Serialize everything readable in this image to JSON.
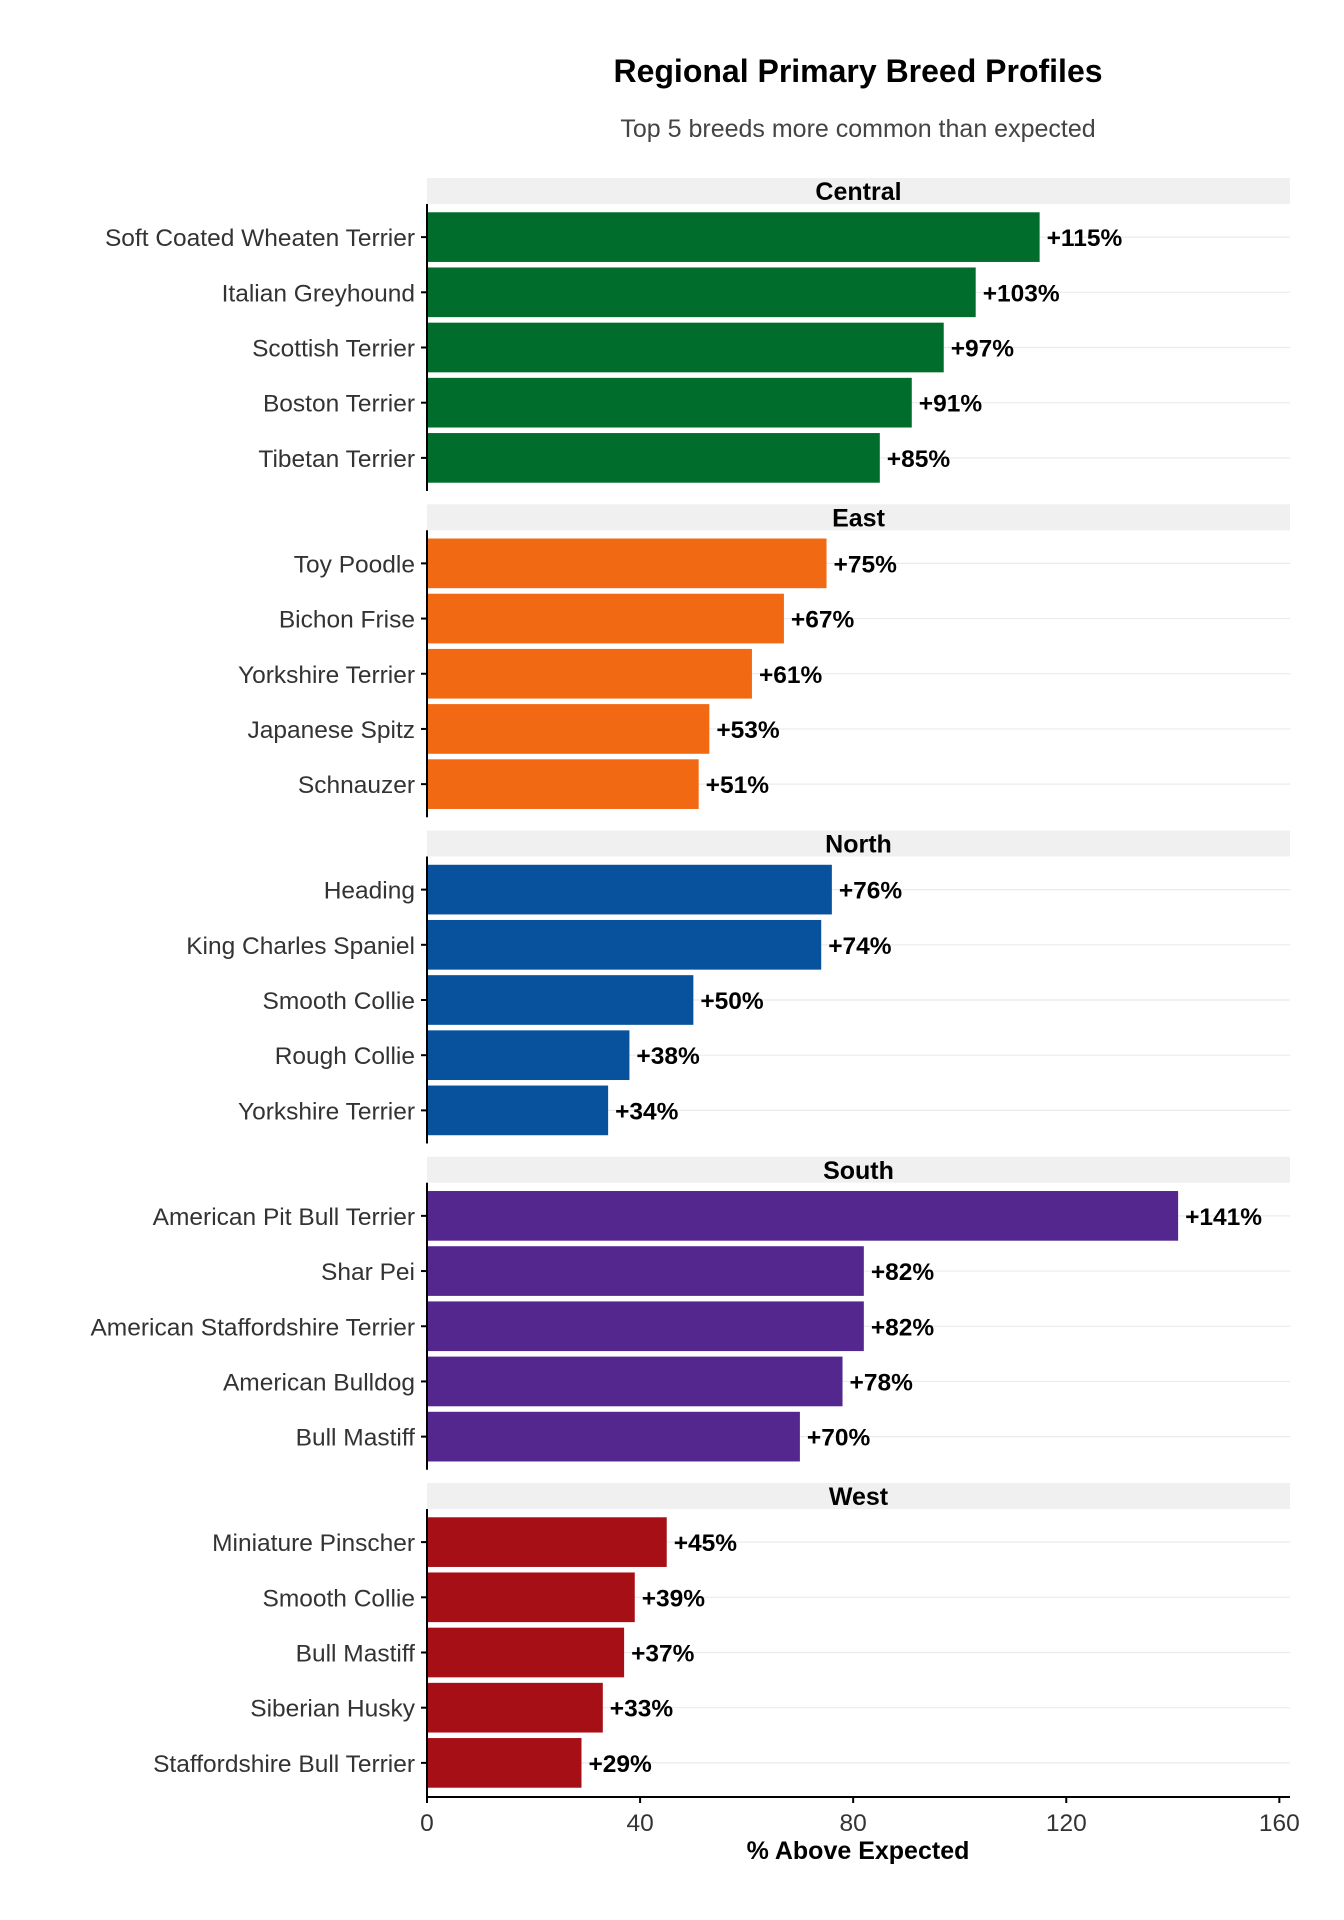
{
  "chart_data": {
    "type": "bar",
    "orientation": "horizontal",
    "title": "Regional Primary Breed Profiles",
    "subtitle": "Top 5 breeds more common than expected",
    "xlabel": "% Above Expected",
    "ylabel": "",
    "xlim": [
      0,
      162
    ],
    "xticks": [
      0,
      40,
      80,
      120,
      160
    ],
    "xtick_labels": [
      "0",
      "40",
      "80",
      "120",
      "160"
    ],
    "grid": "horizontal-major",
    "legend": "none",
    "facets": [
      {
        "name": "Central",
        "color": "#006D2C",
        "categories": [
          "Soft Coated Wheaten Terrier",
          "Italian Greyhound",
          "Scottish Terrier",
          "Boston Terrier",
          "Tibetan Terrier"
        ],
        "values": [
          115,
          103,
          97,
          91,
          85
        ],
        "labels": [
          "+115%",
          "+103%",
          "+97%",
          "+91%",
          "+85%"
        ]
      },
      {
        "name": "East",
        "color": "#F16913",
        "categories": [
          "Toy Poodle",
          "Bichon Frise",
          "Yorkshire Terrier",
          "Japanese Spitz",
          "Schnauzer"
        ],
        "values": [
          75,
          67,
          61,
          53,
          51
        ],
        "labels": [
          "+75%",
          "+67%",
          "+61%",
          "+53%",
          "+51%"
        ]
      },
      {
        "name": "North",
        "color": "#08519C",
        "categories": [
          "Heading",
          "King Charles Spaniel",
          "Smooth Collie",
          "Rough Collie",
          "Yorkshire Terrier"
        ],
        "values": [
          76,
          74,
          50,
          38,
          34
        ],
        "labels": [
          "+76%",
          "+74%",
          "+50%",
          "+38%",
          "+34%"
        ]
      },
      {
        "name": "South",
        "color": "#54278F",
        "categories": [
          "American Pit Bull Terrier",
          "Shar Pei",
          "American Staffordshire Terrier",
          "American Bulldog",
          "Bull Mastiff"
        ],
        "values": [
          141,
          82,
          82,
          78,
          70
        ],
        "labels": [
          "+141%",
          "+82%",
          "+82%",
          "+78%",
          "+70%"
        ]
      },
      {
        "name": "West",
        "color": "#A50F15",
        "categories": [
          "Miniature Pinscher",
          "Smooth Collie",
          "Bull Mastiff",
          "Siberian Husky",
          "Staffordshire Bull Terrier"
        ],
        "values": [
          45,
          39,
          37,
          33,
          29
        ],
        "labels": [
          "+45%",
          "+39%",
          "+37%",
          "+33%",
          "+29%"
        ]
      }
    ]
  }
}
